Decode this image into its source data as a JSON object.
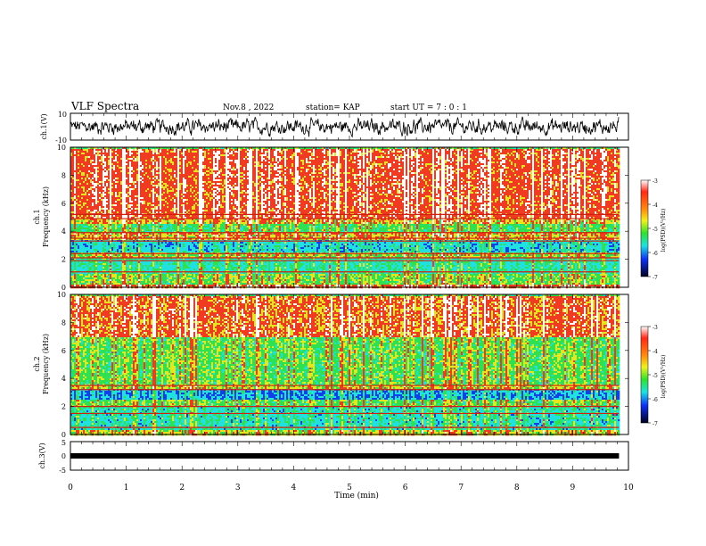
{
  "header": {
    "title": "VLF Spectra",
    "date": "Nov.8 , 2022",
    "station": "station= KAP",
    "start": "start UT = 7 : 0 : 1"
  },
  "chart_data": [
    {
      "type": "line",
      "name": "ch.1 waveform",
      "ylabel": "ch.1(V)",
      "ylim": [
        -10,
        10
      ],
      "y_ticks": [
        "10",
        "-10"
      ],
      "x_range_min": [
        0,
        9.83
      ],
      "description_values": "noisy waveform oscillating roughly between -7 and +7 V",
      "amplitude_typical": 5
    },
    {
      "type": "heatmap",
      "name": "ch.1 spectrogram",
      "ylabel": "ch.1\nFrequency (kHz)",
      "ylim": [
        0,
        10
      ],
      "y_ticks": [
        "0",
        "2",
        "4",
        "6",
        "8",
        "10"
      ],
      "x_range_min": [
        0,
        9.83
      ],
      "colorbar": {
        "label": "log(PSD)(V²/Hz)",
        "range": [
          -7,
          -3
        ],
        "ticks": [
          "-3",
          "-4",
          "-5",
          "-6",
          "-7"
        ]
      },
      "bands_khz": [
        {
          "from": 5.0,
          "to": 10.0,
          "level": -3.3
        },
        {
          "from": 4.6,
          "to": 5.0,
          "level": -3.8
        },
        {
          "from": 4.0,
          "to": 4.6,
          "level": -4.5
        },
        {
          "from": 3.4,
          "to": 4.0,
          "level": -3.8
        },
        {
          "from": 2.6,
          "to": 3.4,
          "level": -5.2
        },
        {
          "from": 2.2,
          "to": 2.6,
          "level": -4.2
        },
        {
          "from": 1.0,
          "to": 2.2,
          "level": -4.9
        },
        {
          "from": 0.3,
          "to": 1.0,
          "level": -4.3
        },
        {
          "from": 0.0,
          "to": 0.3,
          "level": -3.3
        }
      ],
      "lines_khz": [
        5.2,
        4.9,
        3.9,
        3.5,
        3.3,
        2.4,
        2.1,
        1.9,
        1.1
      ]
    },
    {
      "type": "heatmap",
      "name": "ch.2 spectrogram",
      "ylabel": "ch.2\nFrequency (kHz)",
      "ylim": [
        0,
        10
      ],
      "y_ticks": [
        "0",
        "2",
        "4",
        "6",
        "8",
        "10"
      ],
      "x_range_min": [
        0,
        9.83
      ],
      "colorbar": {
        "label": "log(PSD)(V²/Hz)",
        "range": [
          -7,
          -3
        ],
        "ticks": [
          "-3",
          "-4",
          "-5",
          "-6",
          "-7"
        ]
      },
      "bands_khz": [
        {
          "from": 7.0,
          "to": 10.0,
          "level": -3.5
        },
        {
          "from": 3.6,
          "to": 7.0,
          "level": -4.4
        },
        {
          "from": 3.3,
          "to": 3.6,
          "level": -4.0
        },
        {
          "from": 2.5,
          "to": 3.3,
          "level": -5.5
        },
        {
          "from": 2.0,
          "to": 2.5,
          "level": -4.4
        },
        {
          "from": 0.4,
          "to": 2.0,
          "level": -5.0
        },
        {
          "from": 0.0,
          "to": 0.4,
          "level": -4.0
        }
      ],
      "lines_khz": [
        3.5,
        3.2,
        2.0,
        1.5,
        0.5
      ]
    },
    {
      "type": "line",
      "name": "ch.3 level",
      "ylabel": "ch.3(V)",
      "ylim": [
        -5,
        5
      ],
      "y_ticks": [
        "5",
        "0",
        "-5"
      ],
      "x_range_min": [
        0,
        9.83
      ],
      "values_constant": 0
    }
  ],
  "x_axis": {
    "label": "Time (min)",
    "ticks": [
      "0",
      "1",
      "2",
      "3",
      "4",
      "5",
      "6",
      "7",
      "8",
      "9",
      "10"
    ],
    "range": [
      0,
      10
    ]
  },
  "colors": {
    "red": "#f03a22",
    "yellow": "#e6e61e",
    "green": "#2fe050",
    "cyan": "#21e0e0",
    "blue": "#1040e8",
    "dark": "#0a0a3c",
    "white": "#ffffff"
  }
}
